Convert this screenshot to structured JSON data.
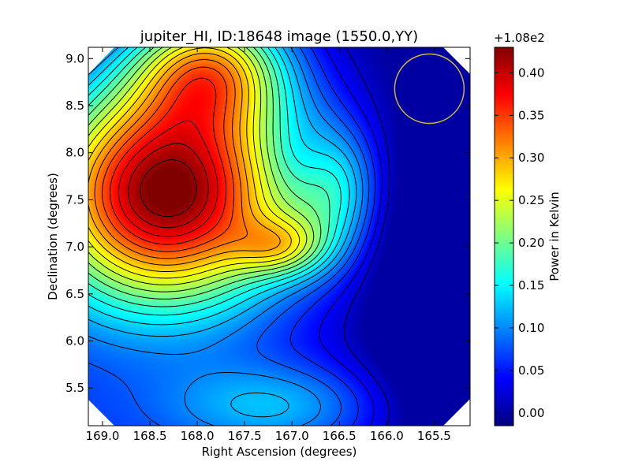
{
  "chart_data": {
    "type": "heatmap",
    "title": "jupiter_HI, ID:18648 image (1550.0,YY)",
    "xlabel": "Right Ascension (degrees)",
    "ylabel": "Declination (degrees)",
    "xlim": [
      169.15,
      165.12
    ],
    "ylim": [
      5.1,
      9.12
    ],
    "x_ticks": [
      "169.0",
      "168.5",
      "168.0",
      "167.5",
      "167.0",
      "166.5",
      "166.0",
      "165.5"
    ],
    "y_ticks": [
      "5.5",
      "6.0",
      "6.5",
      "7.0",
      "7.5",
      "8.0",
      "8.5",
      "9.0"
    ],
    "colorbar": {
      "label": "Power in Kelvin",
      "offset_label": "+1.08e2",
      "colormap": "jet",
      "range": [
        -0.015,
        0.43
      ],
      "ticks": [
        "0.00",
        "0.05",
        "0.10",
        "0.15",
        "0.20",
        "0.25",
        "0.30",
        "0.35",
        "0.40"
      ]
    },
    "field": {
      "min_value": 0.0,
      "max_value": 0.43,
      "peak": {
        "ra": 168.3,
        "dec": 7.6,
        "value": 0.42
      },
      "second_peak": {
        "ra": 167.1,
        "dec": 7.0,
        "value": 0.33
      },
      "min_region": {
        "ra": 165.3,
        "dec": 6.5,
        "value": 0.0
      }
    },
    "beam_marker": {
      "ra": 165.55,
      "dec": 8.68,
      "color": "#c8b43c"
    },
    "grid": false,
    "contours": true
  }
}
